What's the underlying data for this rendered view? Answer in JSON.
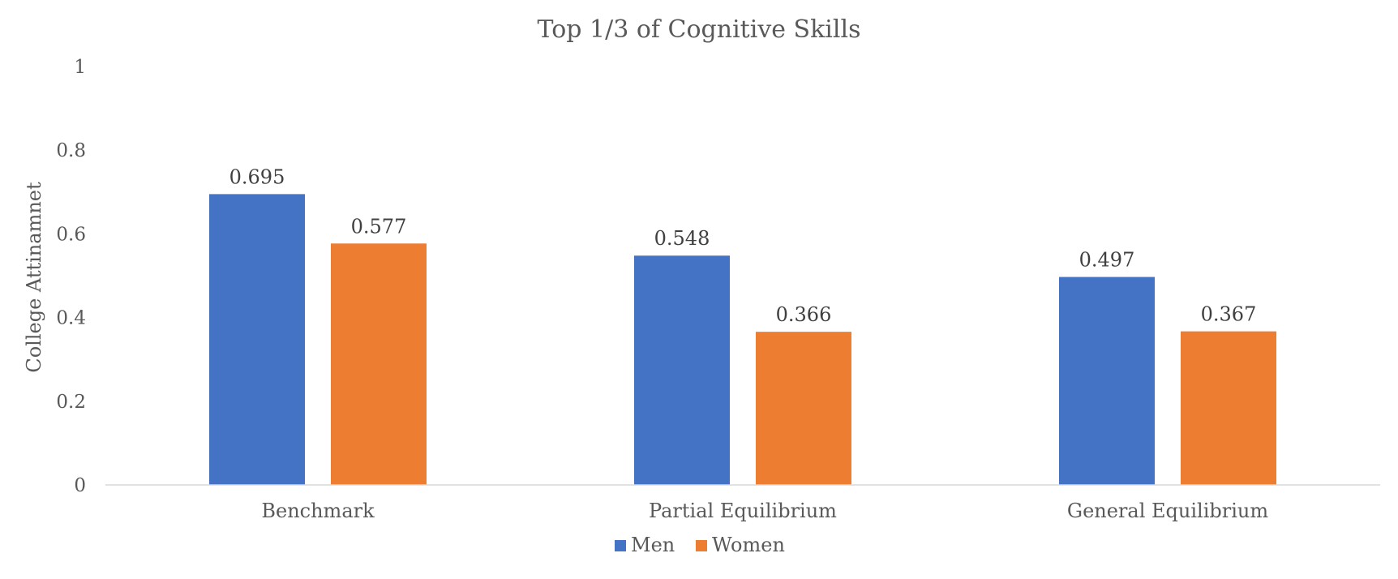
{
  "chart_data": {
    "type": "bar",
    "title": "Top 1/3 of Cognitive Skills",
    "xlabel": "",
    "ylabel": "College Attinamnet",
    "categories": [
      "Benchmark",
      "Partial Equilibrium",
      "General Equilibrium"
    ],
    "series": [
      {
        "name": "Men",
        "color": "#4472C4",
        "values": [
          0.695,
          0.548,
          0.497
        ],
        "labels": [
          "0.695",
          "0.548",
          "0.497"
        ]
      },
      {
        "name": "Women",
        "color": "#ED7D31",
        "values": [
          0.577,
          0.366,
          0.367
        ],
        "labels": [
          "0.577",
          "0.366",
          "0.367"
        ]
      }
    ],
    "ylim": [
      0,
      1
    ],
    "yticks": [
      0,
      0.2,
      0.4,
      0.6,
      0.8,
      1
    ],
    "ytick_labels": [
      "0",
      "0.2",
      "0.4",
      "0.6",
      "0.8",
      "1"
    ],
    "grid": false,
    "legend_position": "bottom"
  }
}
